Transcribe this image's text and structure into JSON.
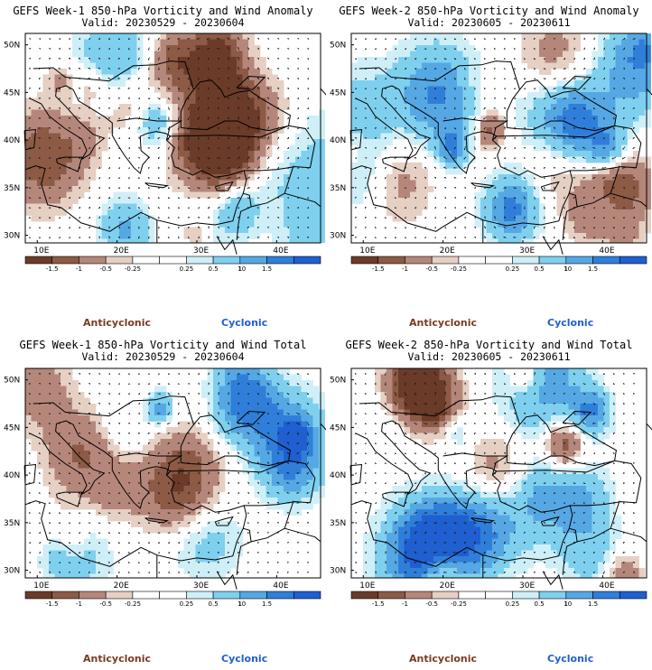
{
  "palette": {
    "levels": [
      "#6b3b2a",
      "#8c5a45",
      "#b5877a",
      "#e6cfc3",
      "#ffffff",
      "#ffffff",
      "#cfeff8",
      "#7fd0ef",
      "#56a8e4",
      "#2f7fda",
      "#1f5fd0"
    ],
    "coast": "#000000",
    "vector": "#1a1a1a"
  },
  "colorbar": {
    "labels": [
      "-1.5",
      "-1",
      "-0.5",
      "-0.25",
      "0.25",
      "0.5",
      "1",
      "1.5"
    ],
    "scale_note": "10"
  },
  "axes": {
    "x_ticks": [
      "10E",
      "20E",
      "30E",
      "40E"
    ],
    "y_ticks": [
      "50N",
      "45N",
      "40N",
      "35N",
      "30N"
    ]
  },
  "panels": [
    {
      "title": "GEFS Week-1 850-hPa Vorticity and Wind Anomaly",
      "valid": "Valid: 20230529 - 20230604",
      "anticyclonic": "Anticyclonic",
      "cyclonic": "Cyclonic",
      "variant": "w1a"
    },
    {
      "title": "GEFS Week-2 850-hPa Vorticity and Wind Anomaly",
      "valid": "Valid: 20230605 - 20230611",
      "anticyclonic": "Anticyclonic",
      "cyclonic": "Cyclonic",
      "variant": "w2a"
    },
    {
      "title": "GEFS Week-1 850-hPa Vorticity and Wind Total",
      "valid": "Valid: 20230529 - 20230604",
      "anticyclonic": "Anticyclonic",
      "cyclonic": "Cyclonic",
      "variant": "w1t"
    },
    {
      "title": "GEFS Week-2 850-hPa Vorticity and Wind Total",
      "valid": "Valid: 20230605 - 20230611",
      "anticyclonic": "Anticyclonic",
      "cyclonic": "Cyclonic",
      "variant": "w2t"
    }
  ]
}
